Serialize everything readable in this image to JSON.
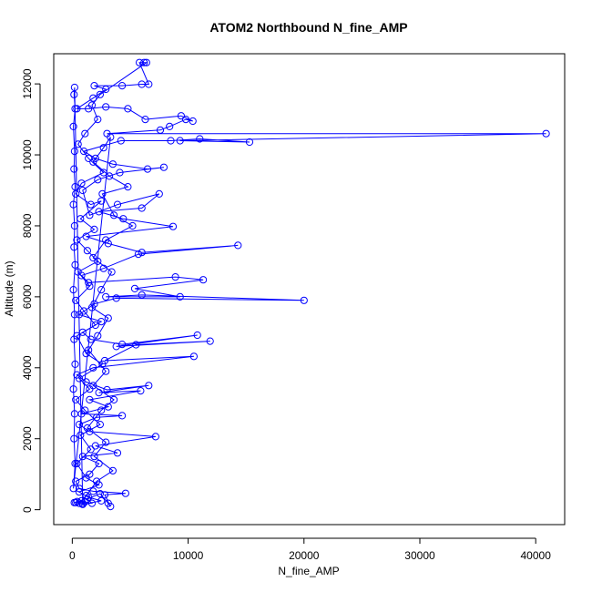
{
  "chart_data": {
    "type": "scatter",
    "title": "ATOM2 Northbound N_fine_AMP",
    "xlabel": "N_fine_AMP",
    "ylabel": "Altitude (m)",
    "xlim": [
      -1600,
      42500
    ],
    "ylim": [
      -420,
      12850
    ],
    "xticks": [
      0,
      10000,
      20000,
      30000,
      40000
    ],
    "yticks": [
      0,
      2000,
      4000,
      6000,
      8000,
      10000,
      12000
    ],
    "xtick_labels": [
      "0",
      "10000",
      "20000",
      "30000",
      "40000"
    ],
    "ytick_labels": [
      "0",
      "2000",
      "4000",
      "6000",
      "8000",
      "10000",
      "12000"
    ],
    "grid": false,
    "series": [
      {
        "color": "#0000ff",
        "marker": "open-circle",
        "connected": true,
        "points": [
          [
            180,
            200
          ],
          [
            420,
            230
          ],
          [
            900,
            180
          ],
          [
            1700,
            180
          ],
          [
            1300,
            300
          ],
          [
            2400,
            450
          ],
          [
            3100,
            180
          ],
          [
            3300,
            90
          ],
          [
            2800,
            420
          ],
          [
            4600,
            460
          ],
          [
            1800,
            520
          ],
          [
            600,
            600
          ],
          [
            300,
            800
          ],
          [
            1500,
            1000
          ],
          [
            2300,
            1300
          ],
          [
            900,
            1500
          ],
          [
            3900,
            1600
          ],
          [
            2000,
            1800
          ],
          [
            7200,
            2060
          ],
          [
            1500,
            2200
          ],
          [
            600,
            2400
          ],
          [
            2100,
            2600
          ],
          [
            4300,
            2650
          ],
          [
            800,
            2700
          ],
          [
            3100,
            2900
          ],
          [
            1500,
            3100
          ],
          [
            5900,
            3350
          ],
          [
            2300,
            3300
          ],
          [
            6600,
            3500
          ],
          [
            3000,
            3380
          ],
          [
            1200,
            3600
          ],
          [
            400,
            3800
          ],
          [
            1800,
            4000
          ],
          [
            10500,
            4320
          ],
          [
            2800,
            4200
          ],
          [
            5500,
            4650
          ],
          [
            11900,
            4750
          ],
          [
            3800,
            4600
          ],
          [
            10800,
            4920
          ],
          [
            4300,
            4660
          ],
          [
            1600,
            4800
          ],
          [
            900,
            5000
          ],
          [
            2500,
            5300
          ],
          [
            600,
            5500
          ],
          [
            1900,
            5800
          ],
          [
            3800,
            5960
          ],
          [
            20000,
            5900
          ],
          [
            6000,
            6050
          ],
          [
            2900,
            6000
          ],
          [
            9300,
            6000
          ],
          [
            5400,
            6230
          ],
          [
            11300,
            6480
          ],
          [
            8900,
            6560
          ],
          [
            1400,
            6400
          ],
          [
            800,
            6600
          ],
          [
            2700,
            6800
          ],
          [
            5700,
            7200
          ],
          [
            14300,
            7450
          ],
          [
            6000,
            7250
          ],
          [
            3100,
            7500
          ],
          [
            1200,
            7700
          ],
          [
            8700,
            7980
          ],
          [
            4400,
            8200
          ],
          [
            2300,
            8400
          ],
          [
            6000,
            8500
          ],
          [
            7500,
            8900
          ],
          [
            3900,
            8600
          ],
          [
            1500,
            8300
          ],
          [
            900,
            9000
          ],
          [
            2200,
            9300
          ],
          [
            4100,
            9500
          ],
          [
            7900,
            9650
          ],
          [
            6500,
            9600
          ],
          [
            3500,
            9740
          ],
          [
            2000,
            9900
          ],
          [
            1000,
            10100
          ],
          [
            4200,
            10400
          ],
          [
            8500,
            10400
          ],
          [
            11000,
            10450
          ],
          [
            15300,
            10360
          ],
          [
            9300,
            10400
          ],
          [
            40900,
            10600
          ],
          [
            3000,
            10600
          ],
          [
            7600,
            10700
          ],
          [
            8400,
            10800
          ],
          [
            9800,
            11000
          ],
          [
            10400,
            10950
          ],
          [
            9400,
            11100
          ],
          [
            6300,
            11000
          ],
          [
            4800,
            11300
          ],
          [
            2900,
            11350
          ],
          [
            1400,
            11300
          ],
          [
            400,
            11300
          ],
          [
            1800,
            11600
          ],
          [
            2900,
            11850
          ],
          [
            1900,
            11950
          ],
          [
            4300,
            11950
          ],
          [
            6000,
            11990
          ],
          [
            6600,
            11990
          ],
          [
            5800,
            12600
          ],
          [
            6200,
            12600
          ],
          [
            6400,
            12600
          ],
          [
            2400,
            11700
          ],
          [
            1700,
            11400
          ],
          [
            2200,
            11000
          ],
          [
            1100,
            10600
          ],
          [
            500,
            10300
          ],
          [
            1400,
            9900
          ],
          [
            2700,
            9500
          ],
          [
            800,
            9200
          ],
          [
            300,
            8900
          ],
          [
            1600,
            8600
          ],
          [
            2500,
            8700
          ],
          [
            700,
            8200
          ],
          [
            1900,
            7900
          ],
          [
            400,
            7600
          ],
          [
            1300,
            7300
          ],
          [
            2200,
            7000
          ],
          [
            500,
            6700
          ],
          [
            1500,
            6300
          ],
          [
            300,
            5900
          ],
          [
            1000,
            5600
          ],
          [
            2000,
            5200
          ],
          [
            400,
            4900
          ],
          [
            1200,
            4400
          ],
          [
            2600,
            4100
          ],
          [
            600,
            3700
          ],
          [
            1500,
            3400
          ],
          [
            300,
            3100
          ],
          [
            1100,
            2800
          ],
          [
            2400,
            2400
          ],
          [
            700,
            2100
          ],
          [
            1600,
            1700
          ],
          [
            400,
            1300
          ],
          [
            1200,
            900
          ],
          [
            2300,
            700
          ],
          [
            600,
            500
          ],
          [
            1400,
            350
          ],
          [
            2500,
            250
          ],
          [
            900,
            150
          ],
          [
            200,
            11900
          ],
          [
            150,
            11700
          ],
          [
            250,
            11300
          ],
          [
            100,
            10800
          ],
          [
            200,
            10100
          ],
          [
            150,
            9600
          ],
          [
            250,
            9100
          ],
          [
            100,
            8600
          ],
          [
            200,
            8000
          ],
          [
            150,
            7400
          ],
          [
            250,
            6900
          ],
          [
            100,
            6200
          ],
          [
            200,
            5500
          ],
          [
            150,
            4800
          ],
          [
            250,
            4100
          ],
          [
            100,
            3400
          ],
          [
            200,
            2700
          ],
          [
            150,
            2000
          ],
          [
            250,
            1300
          ],
          [
            100,
            600
          ],
          [
            3300,
            10500
          ],
          [
            2700,
            10200
          ],
          [
            1800,
            9800
          ],
          [
            3200,
            9400
          ],
          [
            4800,
            9100
          ],
          [
            2600,
            8900
          ],
          [
            3600,
            8300
          ],
          [
            5200,
            8000
          ],
          [
            2900,
            7600
          ],
          [
            1800,
            7100
          ],
          [
            3400,
            6700
          ],
          [
            2500,
            6200
          ],
          [
            1700,
            5700
          ],
          [
            3100,
            5400
          ],
          [
            2200,
            4900
          ],
          [
            1400,
            4500
          ],
          [
            2900,
            3900
          ],
          [
            1800,
            3500
          ],
          [
            3600,
            3100
          ],
          [
            2500,
            2800
          ],
          [
            1300,
            2300
          ],
          [
            2900,
            1900
          ],
          [
            1900,
            1500
          ],
          [
            3500,
            1100
          ],
          [
            2100,
            800
          ],
          [
            1200,
            400
          ],
          [
            800,
            250
          ],
          [
            300,
            200
          ],
          [
            600,
            180
          ],
          [
            1100,
            220
          ]
        ]
      }
    ]
  }
}
